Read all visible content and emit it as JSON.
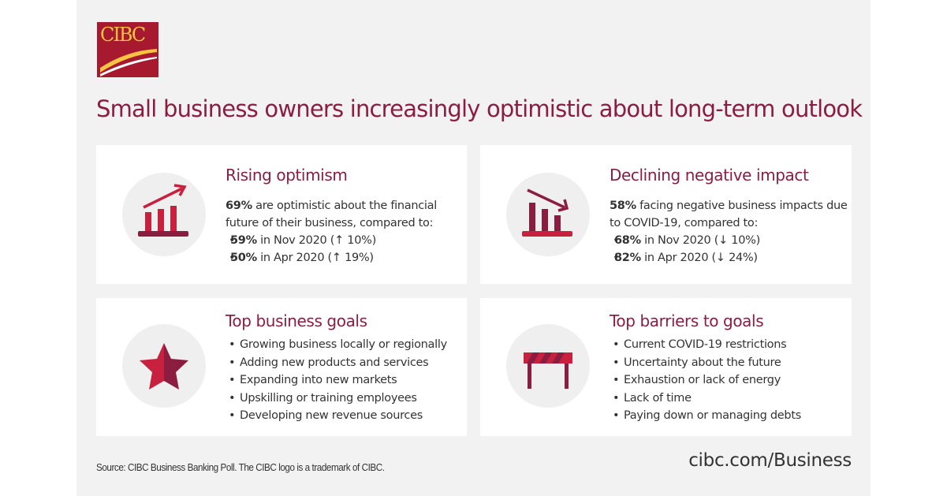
{
  "logo": {
    "text": "CIBC"
  },
  "title": "Small business owners increasingly optimistic about long-term outlook",
  "cards": [
    {
      "heading": "Rising optimism",
      "intro_bold": "69%",
      "intro": " are optimistic about the financial future of their business, compared to:",
      "items": [
        {
          "bold": "59%",
          "text": " in Nov 2020 (↑ 10%)"
        },
        {
          "bold": "50%",
          "text": " in Apr 2020 (↑ 19%)"
        }
      ],
      "icon": "rising-chart-icon"
    },
    {
      "heading": "Declining negative impact",
      "intro_bold": "58%",
      "intro": " facing negative business impacts due to COVID-19, compared to:",
      "items": [
        {
          "bold": "68%",
          "text": " in Nov 2020 (↓ 10%)"
        },
        {
          "bold": "82%",
          "text": " in Apr 2020 (↓ 24%)"
        }
      ],
      "icon": "declining-chart-icon"
    },
    {
      "heading": "Top business goals",
      "items": [
        "Growing business locally or regionally",
        "Adding new products and services",
        "Expanding into new markets",
        "Upskilling or training employees",
        "Developing new revenue sources"
      ],
      "icon": "star-icon"
    },
    {
      "heading": "Top barriers to goals",
      "items": [
        "Current COVID-19 restrictions",
        "Uncertainty about the future",
        "Exhaustion or lack of energy",
        "Lack of time",
        "Paying down or managing debts"
      ],
      "icon": "barrier-icon"
    }
  ],
  "footer": {
    "source": "Source: CIBC Business Banking Poll. The CIBC logo is a trademark of CIBC.",
    "url": "cibc.com/Business"
  },
  "colors": {
    "brand": "#a6192e",
    "title": "#8b1d41",
    "background": "#f2f2f2"
  }
}
